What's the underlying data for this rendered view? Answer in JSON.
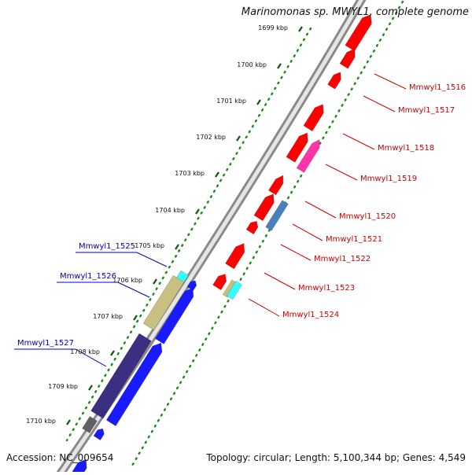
{
  "title": "Marinomonas sp. MWYL1, complete genome",
  "footer": {
    "accession": "Accession: NC_009654",
    "summary": "Topology: circular; Length: 5,100,344 bp; Genes: 4,549"
  },
  "ticks": [
    "1699 kbp",
    "1700 kbp",
    "1701 kbp",
    "1702 kbp",
    "1703 kbp",
    "1704 kbp",
    "1705 kbp",
    "1706 kbp",
    "1707 kbp",
    "1708 kbp",
    "1709 kbp",
    "1710 kbp"
  ],
  "genes_right": [
    "Mmwyl1_1516",
    "Mmwyl1_1517",
    "Mmwyl1_1518",
    "Mmwyl1_1519",
    "Mmwyl1_1520",
    "Mmwyl1_1521",
    "Mmwyl1_1522",
    "Mmwyl1_1523",
    "Mmwyl1_1524"
  ],
  "genes_left": [
    "Mmwyl1_1525",
    "Mmwyl1_1526",
    "Mmwyl1_1527"
  ],
  "colors": {
    "red": "#ff0000",
    "magenta": "#ff33aa",
    "steel": "#4a7fc0",
    "cyan": "#33ffff",
    "khaki": "#c8c080",
    "navy": "#3a2f80",
    "blue": "#1a1aff",
    "gray": "#606060",
    "backbone": "#a0a0a0",
    "dotGreen": "#1a8a1a",
    "labelRed": "#cc0000",
    "labelBlue": "#0000cc"
  }
}
